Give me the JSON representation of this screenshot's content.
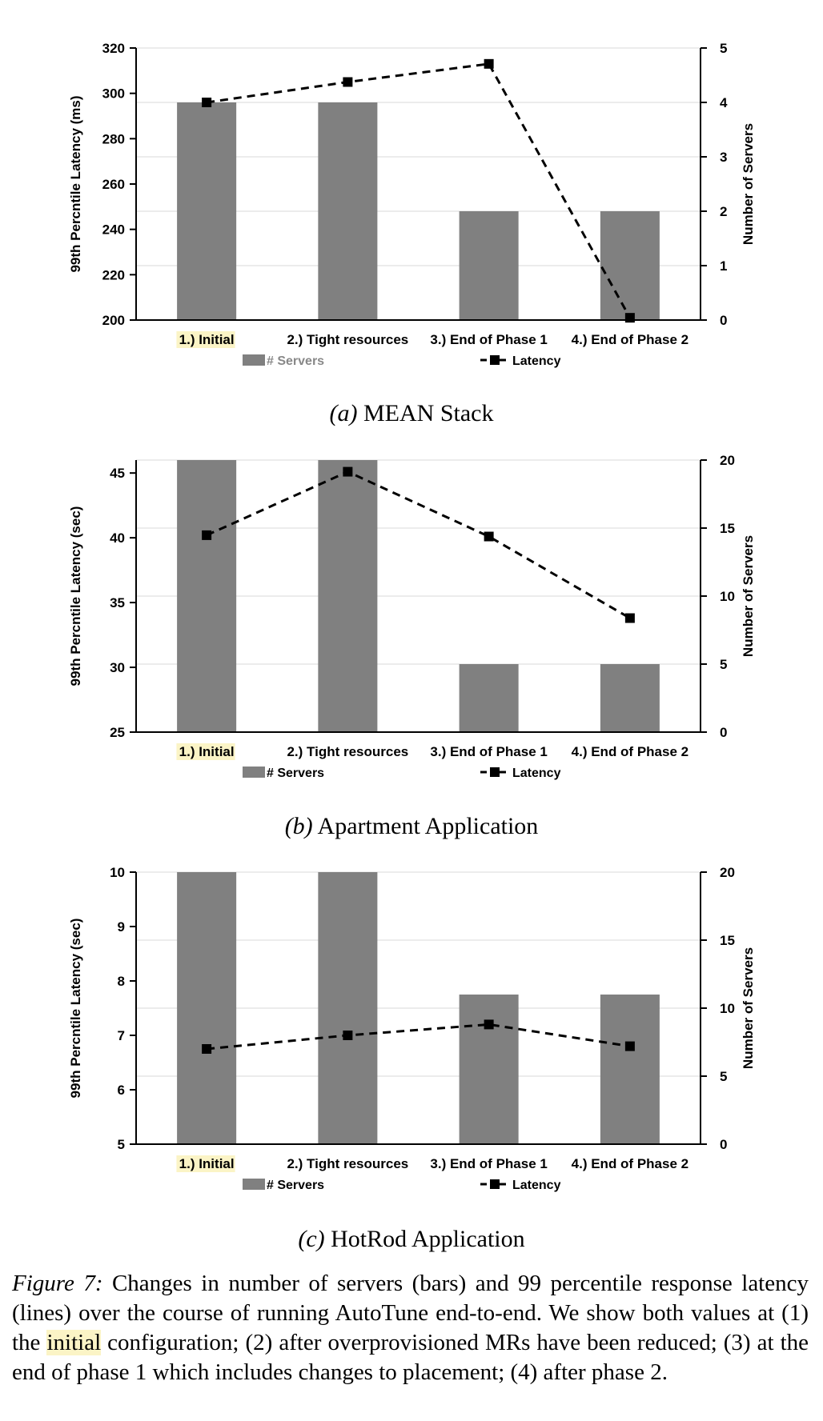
{
  "chart_data": [
    {
      "type": "bar",
      "subtitle_prefix": "(a)",
      "subtitle_name": "MEAN Stack",
      "categories": [
        "1.) ",
        "2.) Tight resources",
        "3.) End of Phase 1",
        "4.) End of Phase 2"
      ],
      "category_highlight": [
        "Initial",
        "",
        "",
        ""
      ],
      "series": [
        {
          "name": "# Servers",
          "type": "bar",
          "axis": "right",
          "values": [
            4,
            4,
            2,
            2
          ],
          "color": "#808080"
        },
        {
          "name": "Latency",
          "type": "line",
          "axis": "left",
          "values": [
            296,
            305,
            313,
            201
          ],
          "color": "#000000"
        }
      ],
      "ylabel": "99th Percntile Latency (ms)",
      "y2label": "Number of Servers",
      "ylim": [
        200,
        320
      ],
      "yticks": [
        200,
        220,
        240,
        260,
        280,
        300,
        320
      ],
      "y2lim": [
        0,
        5
      ],
      "y2ticks": [
        0,
        1,
        2,
        3,
        4,
        5
      ],
      "grid": true,
      "legend": "bottom"
    },
    {
      "type": "bar",
      "subtitle_prefix": "(b)",
      "subtitle_name": "Apartment Application",
      "categories": [
        "1.) ",
        "2.) Tight resources",
        "3.) End of Phase 1",
        "4.) End of Phase 2"
      ],
      "category_highlight": [
        "Initial",
        "",
        "",
        ""
      ],
      "series": [
        {
          "name": "# Servers",
          "type": "bar",
          "axis": "right",
          "values": [
            20,
            20,
            5,
            5
          ],
          "color": "#808080"
        },
        {
          "name": "Latency",
          "type": "line",
          "axis": "left",
          "values": [
            40.2,
            45.1,
            40.1,
            33.8
          ],
          "color": "#000000"
        }
      ],
      "ylabel": "99th Percntile Latency (sec)",
      "y2label": "Number of Servers",
      "ylim": [
        25,
        46
      ],
      "yticks": [
        25,
        30,
        35,
        40,
        45
      ],
      "y2lim": [
        0,
        20
      ],
      "y2ticks": [
        0,
        5,
        10,
        15,
        20
      ],
      "grid": true,
      "legend": "bottom"
    },
    {
      "type": "bar",
      "subtitle_prefix": "(c)",
      "subtitle_name": "HotRod Application",
      "categories": [
        "1.) ",
        "2.) Tight resources",
        "3.) End of Phase 1",
        "4.) End of Phase 2"
      ],
      "category_highlight": [
        "Initial",
        "",
        "",
        ""
      ],
      "series": [
        {
          "name": "# Servers",
          "type": "bar",
          "axis": "right",
          "values": [
            20,
            20,
            11,
            11
          ],
          "color": "#808080"
        },
        {
          "name": "Latency",
          "type": "line",
          "axis": "left",
          "values": [
            6.75,
            7.0,
            7.2,
            6.8
          ],
          "color": "#000000"
        }
      ],
      "ylabel": "99th Percntile Latency (sec)",
      "y2label": "Number of Servers",
      "ylim": [
        5,
        10
      ],
      "yticks": [
        5,
        6,
        7,
        8,
        9,
        10
      ],
      "y2lim": [
        0,
        20
      ],
      "y2ticks": [
        0,
        5,
        10,
        15,
        20
      ],
      "grid": true,
      "legend": "bottom"
    }
  ],
  "caption": {
    "label": "Figure 7:",
    "text_1": " Changes in number of servers (bars) and 99 percentile response latency (lines) over the course of running AutoTune end-to-end. We show both values at (1) the ",
    "highlight": "initial",
    "text_2": " configuration; (2) after overprovisioned MRs have been reduced; (3) at the end of phase 1 which includes changes to placement; (4) after phase 2."
  }
}
